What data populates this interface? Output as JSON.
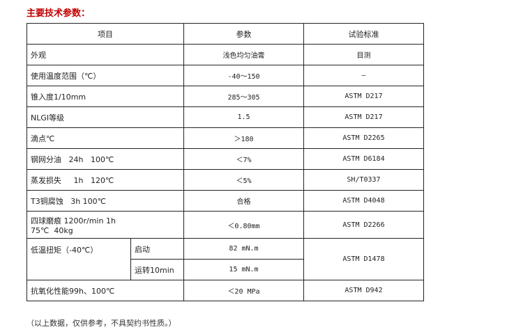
{
  "title": "主要技术参数：",
  "headers": [
    "项目",
    "参数",
    "试验标准"
  ],
  "rows": [
    {
      "item": "外观",
      "value": "浅色均匀油膏",
      "standard": "目测"
    },
    {
      "item": "使用温度范围（℃）",
      "value": "-40～150",
      "standard": "—"
    },
    {
      "item": "锥入度1/10mm",
      "value": "285～305",
      "standard": "ASTM D217"
    },
    {
      "item": "NLGI等级",
      "value": "1.5",
      "standard": "ASTM D217"
    },
    {
      "item": "滴点℃",
      "value": "＞180",
      "standard": "ASTM D2265"
    },
    {
      "item": "钢网分油   24h   100℃",
      "value": "＜7%",
      "standard": "ASTM D6184"
    },
    {
      "item": "蒸发损失     1h   120℃",
      "value": "＜5%",
      "standard": "SH/T0337"
    },
    {
      "item": "T3铜腐蚀   3h 100℃",
      "value": "合格",
      "standard": "ASTM D4048"
    },
    {
      "item_line1": "四球磨痕 1200r/min 1h",
      "item_line2": "75℃  40kg",
      "value": "＜0.80mm",
      "standard": "ASTM D2266"
    }
  ],
  "torque": {
    "item": "低温扭矩（-40℃）",
    "sub1": "启动",
    "value1": "82 mN.m",
    "sub2": "运转10min",
    "value2": "15 mN.m",
    "standard": "ASTM D1478"
  },
  "oxidation": {
    "item": "抗氧化性能99h、100℃",
    "value": "＜20 MPa",
    "standard": "ASTM D942"
  },
  "note": "（以上数据，仅供参考，不具契约书性质。）"
}
